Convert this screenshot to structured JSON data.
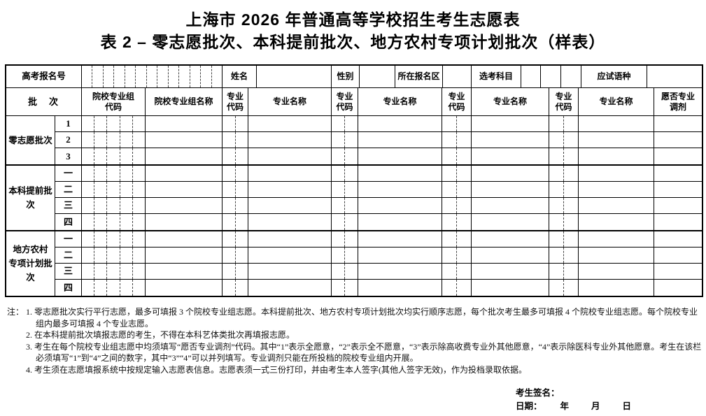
{
  "title": "上海市 2026 年普通高等学校招生考生志愿表",
  "subtitle": "表 2 – 零志愿批次、本科提前批次、地方农村专项计划批次（样表）",
  "info_row": {
    "reg_no_label": "高考报名号",
    "reg_no_box_count": 13,
    "name_label": "姓名",
    "gender_label": "性别",
    "district_label": "所在报名区",
    "subjects_label": "选考科目",
    "subject_box_count": 3,
    "language_label": "应试语种"
  },
  "header_row": {
    "batch": "批　次",
    "group_code": "院校专业组\n代码",
    "group_name": "院校专业组名称",
    "major_code": "专业\n代码",
    "major_name": "专业名称",
    "adjust": "愿否专业\n调剂"
  },
  "sections": [
    {
      "label": "零志愿批次",
      "row_labels": [
        "1",
        "2",
        "3"
      ]
    },
    {
      "label": "本科提前批次",
      "row_labels": [
        "一",
        "二",
        "三",
        "四"
      ]
    },
    {
      "label": "地方农村\n专项计划批次",
      "row_labels": [
        "一",
        "二",
        "三",
        "四"
      ]
    }
  ],
  "notes": {
    "prefix": "注：",
    "items": [
      "1. 零志愿批次实行平行志愿，最多可填报 3 个院校专业组志愿。本科提前批次、地方农村专项计划批次均实行顺序志愿，每个批次考生最多可填报 4 个院校专业组志愿。每个院校专业组内最多可填报 4 个专业志愿。",
      "2. 在本科提前批次填报志愿的考生，不得在本科艺体类批次再填报志愿。",
      "3. 考生在每个院校专业组志愿中均须填写“愿否专业调剂”代码。其中“1”表示全愿意，“2”表示全不愿意，“3”表示除高收费专业外其他愿意，“4”表示除医科专业外其他愿意。考生在该栏必须填写“1”到“4”之间的数字，其中“3”“4”可以并列填写。专业调剂只能在所投档的院校专业组内开展。",
      "4. 考生须在志愿填报系统中按规定输入志愿表信息。志愿表须一式三份打印，并由考生本人签字(其他人签字无效)，作为投档录取依据。"
    ]
  },
  "signature": {
    "sign_label": "考生签名：",
    "date_label": "日期：",
    "year_label": "年",
    "month_label": "月",
    "day_label": "日"
  }
}
